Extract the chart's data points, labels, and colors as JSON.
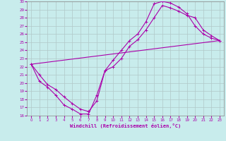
{
  "xlabel": "Windchill (Refroidissement éolien,°C)",
  "bg_color": "#c8ecec",
  "grid_color": "#b0c8c8",
  "line_color": "#aa00aa",
  "xlim": [
    -0.5,
    23.5
  ],
  "ylim": [
    16,
    30
  ],
  "yticks": [
    16,
    17,
    18,
    19,
    20,
    21,
    22,
    23,
    24,
    25,
    26,
    27,
    28,
    29,
    30
  ],
  "xticks": [
    0,
    1,
    2,
    3,
    4,
    5,
    6,
    7,
    8,
    9,
    10,
    11,
    12,
    13,
    14,
    15,
    16,
    17,
    18,
    19,
    20,
    21,
    22,
    23
  ],
  "curve1_x": [
    0,
    1,
    2,
    3,
    4,
    5,
    6,
    7,
    8,
    9,
    10,
    11,
    12,
    13,
    14,
    15,
    16,
    17,
    18,
    19,
    20,
    21,
    22,
    23
  ],
  "curve1_y": [
    22.3,
    20.2,
    19.5,
    18.5,
    17.3,
    16.8,
    16.2,
    16.2,
    18.5,
    21.5,
    22.8,
    24.0,
    25.2,
    26.0,
    27.5,
    29.7,
    30.0,
    29.8,
    29.3,
    28.5,
    27.0,
    26.0,
    25.5,
    25.2
  ],
  "curve2_x": [
    0,
    1,
    2,
    3,
    4,
    5,
    6,
    7,
    8,
    9,
    10,
    11,
    12,
    13,
    14,
    15,
    16,
    17,
    18,
    19,
    20,
    21,
    22,
    23
  ],
  "curve2_y": [
    22.3,
    21.0,
    19.8,
    19.2,
    18.3,
    17.5,
    16.8,
    16.5,
    17.8,
    21.5,
    22.0,
    23.0,
    24.5,
    25.3,
    26.5,
    28.0,
    29.5,
    29.2,
    28.8,
    28.3,
    28.0,
    26.5,
    25.8,
    25.2
  ],
  "curve3_x": [
    0,
    23
  ],
  "curve3_y": [
    22.3,
    25.2
  ]
}
